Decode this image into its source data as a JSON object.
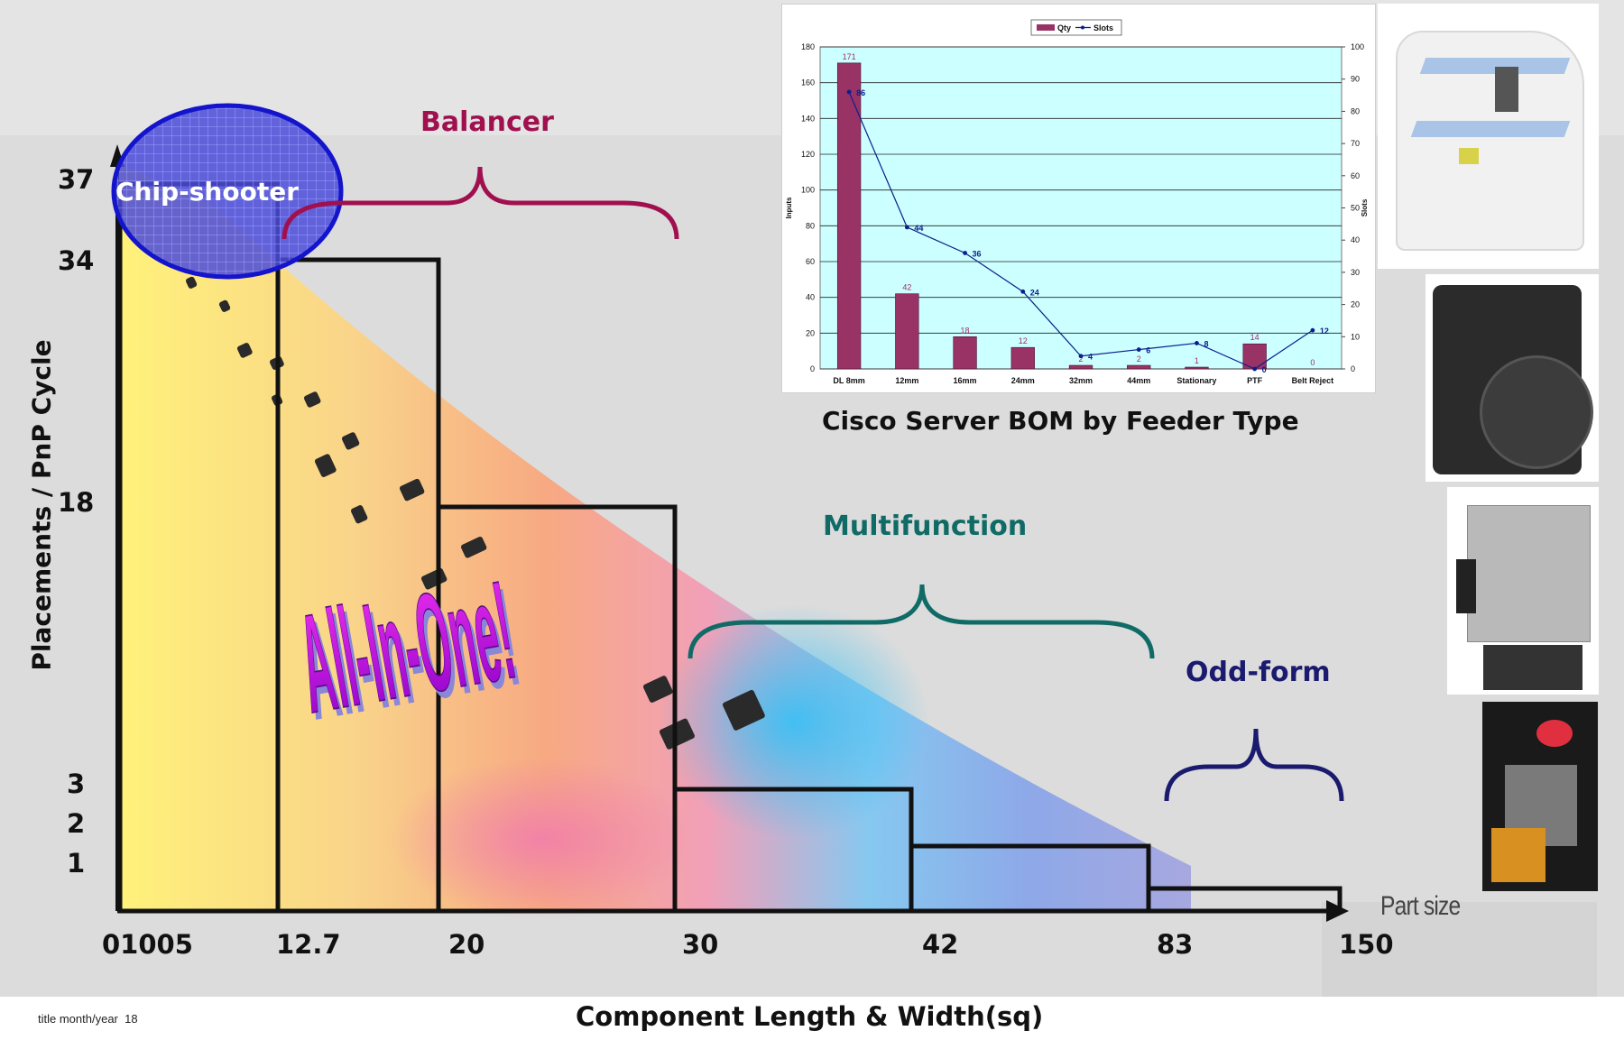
{
  "slide": {
    "footer": "title month/year  18",
    "x_axis_title": "Component Length & Width(sq)",
    "y_axis_title": "Placements / PnP Cycle",
    "part_size_label": "Part size",
    "all_in_one": "All-In-One!",
    "categories": {
      "chip_shooter": "Chip-shooter",
      "balancer": "Balancer",
      "multifunction": "Multifunction",
      "odd_form": "Odd-form"
    },
    "inset_caption": "Cisco Server BOM by Feeder Type",
    "colors": {
      "background": "#dcdcdc",
      "balancer": "#a0104f",
      "multifunction": "#106b66",
      "odd_form": "#1a1a6e",
      "ellipse_fill": "#4b4bd9",
      "ellipse_stroke": "#1414cc",
      "all_in_one_top": "#f030f0",
      "all_in_one_bottom": "#8c00c8"
    },
    "icons": [
      "pick-and-place-machine-image",
      "feeder-module-image",
      "tray-feeder-image",
      "placement-head-image"
    ]
  },
  "chart_data": [
    {
      "type": "step",
      "y_ticks": [
        "37",
        "34",
        "18",
        "3",
        "2",
        "1"
      ],
      "x_ticks": [
        "01005",
        "12.7",
        "20",
        "30",
        "42",
        "83",
        "150"
      ],
      "steps": [
        {
          "x_from": "01005",
          "x_to": "12.7",
          "placements": 37
        },
        {
          "x_from": "12.7",
          "x_to": "20",
          "placements": 34
        },
        {
          "x_from": "20",
          "x_to": "30",
          "placements": 18
        },
        {
          "x_from": "30",
          "x_to": "42",
          "placements": 3
        },
        {
          "x_from": "42",
          "x_to": "83",
          "placements": 2
        },
        {
          "x_from": "83",
          "x_to": "150",
          "placements": 1
        }
      ],
      "xlabel": "Component Length & Width(sq)",
      "ylabel": "Placements / PnP Cycle"
    },
    {
      "type": "bar",
      "title": "Cisco Server BOM by Feeder Type",
      "legend": [
        "Qty",
        "Slots"
      ],
      "legend_position": "top",
      "categories": [
        "DL 8mm",
        "12mm",
        "16mm",
        "24mm",
        "32mm",
        "44mm",
        "Stationary",
        "PTF",
        "Belt Reject"
      ],
      "series": [
        {
          "name": "Qty",
          "type": "bar",
          "axis": "left",
          "values": [
            171,
            42,
            18,
            12,
            2,
            2,
            1,
            14,
            0
          ]
        },
        {
          "name": "Slots",
          "type": "line",
          "axis": "right",
          "values": [
            86,
            44,
            36,
            24,
            4,
            6,
            8,
            0,
            12
          ]
        }
      ],
      "ylabel": "Inputs",
      "y2label": "Slots",
      "ylim": [
        0,
        180
      ],
      "y_ticks": [
        0,
        20,
        40,
        60,
        80,
        100,
        120,
        140,
        160,
        180
      ],
      "y2lim": [
        0,
        100
      ],
      "y2_ticks": [
        0,
        10,
        20,
        30,
        40,
        50,
        60,
        70,
        80,
        90,
        100
      ],
      "grid": true,
      "plot_background": "#ccffff",
      "bar_color": "#993366",
      "line_color": "#0b1f8c"
    }
  ]
}
